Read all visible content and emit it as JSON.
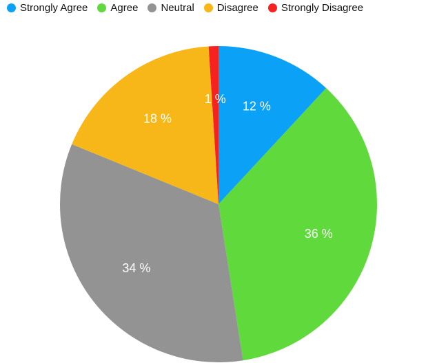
{
  "chart_data": {
    "type": "pie",
    "categories": [
      "Strongly Agree",
      "Agree",
      "Neutral",
      "Disagree",
      "Strongly Disagree"
    ],
    "values": [
      12,
      36,
      34,
      18,
      1
    ],
    "value_labels": [
      "12 %",
      "36 %",
      "34 %",
      "18 %",
      "1 %"
    ],
    "colors": [
      "#0ba1f6",
      "#5fd93b",
      "#939393",
      "#f7b718",
      "#f5231f"
    ],
    "legend": "top"
  }
}
